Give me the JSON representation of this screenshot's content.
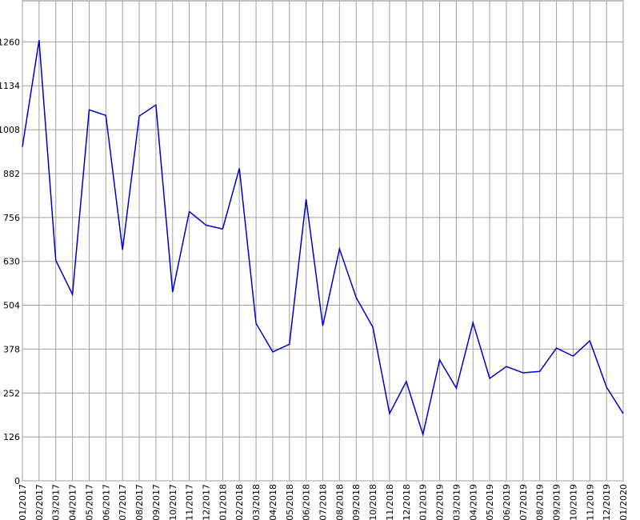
{
  "chart_data": {
    "type": "line",
    "categories": [
      "01/2017",
      "02/2017",
      "03/2017",
      "04/2017",
      "05/2017",
      "06/2017",
      "07/2017",
      "08/2017",
      "09/2017",
      "10/2017",
      "11/2017",
      "12/2017",
      "01/2018",
      "02/2018",
      "03/2018",
      "04/2018",
      "05/2018",
      "06/2018",
      "07/2018",
      "08/2018",
      "09/2018",
      "10/2018",
      "11/2018",
      "12/2018",
      "01/2019",
      "02/2019",
      "03/2019",
      "04/2019",
      "05/2019",
      "06/2019",
      "07/2019",
      "08/2019",
      "09/2019",
      "10/2019",
      "11/2019",
      "12/2019",
      "01/2020"
    ],
    "series": [
      {
        "color": "#0000cc",
        "values": [
          959,
          1265,
          633,
          535,
          1065,
          1049,
          663,
          1047,
          1079,
          542,
          773,
          734,
          723,
          897,
          452,
          370,
          392,
          808,
          445,
          666,
          526,
          441,
          193,
          285,
          133,
          347,
          266,
          454,
          294,
          328,
          310,
          314,
          381,
          358,
          402,
          269,
          193
        ]
      }
    ],
    "ylim": [
      0,
      1378
    ],
    "yticks": [
      0,
      126,
      252,
      378,
      504,
      630,
      756,
      882,
      1008,
      1134,
      1260
    ],
    "grid": true
  }
}
